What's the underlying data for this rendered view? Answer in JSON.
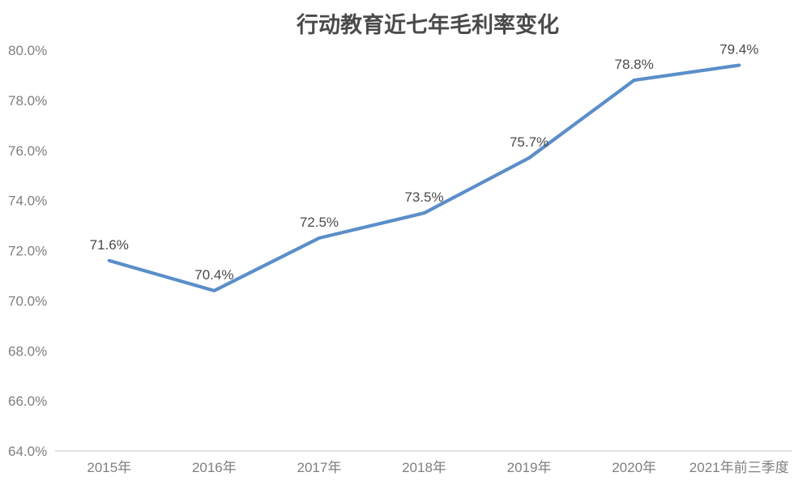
{
  "chart_data": {
    "type": "line",
    "title": "行动教育近七年毛利率变化",
    "categories": [
      "2015年",
      "2016年",
      "2017年",
      "2018年",
      "2019年",
      "2020年",
      "2021年前三季度"
    ],
    "series": [
      {
        "name": "毛利率",
        "values": [
          71.6,
          70.4,
          72.5,
          73.5,
          75.7,
          78.8,
          79.4
        ]
      }
    ],
    "data_labels": [
      "71.6%",
      "70.4%",
      "72.5%",
      "73.5%",
      "75.7%",
      "78.8%",
      "79.4%"
    ],
    "xlabel": "",
    "ylabel": "",
    "ylim": [
      64,
      80
    ],
    "ytick_step": 2,
    "ytick_labels": [
      "64.0%",
      "66.0%",
      "68.0%",
      "70.0%",
      "72.0%",
      "74.0%",
      "76.0%",
      "78.0%",
      "80.0%"
    ],
    "grid": false,
    "legend_position": "none",
    "marker": "none",
    "colors": {
      "line": "#5B8EC9",
      "axis_line": "#D9D9D9",
      "tick_label": "#7F7F7F",
      "data_label": "#4A4A4A",
      "title": "#4A4A4A",
      "background": "#FFFFFF"
    }
  }
}
